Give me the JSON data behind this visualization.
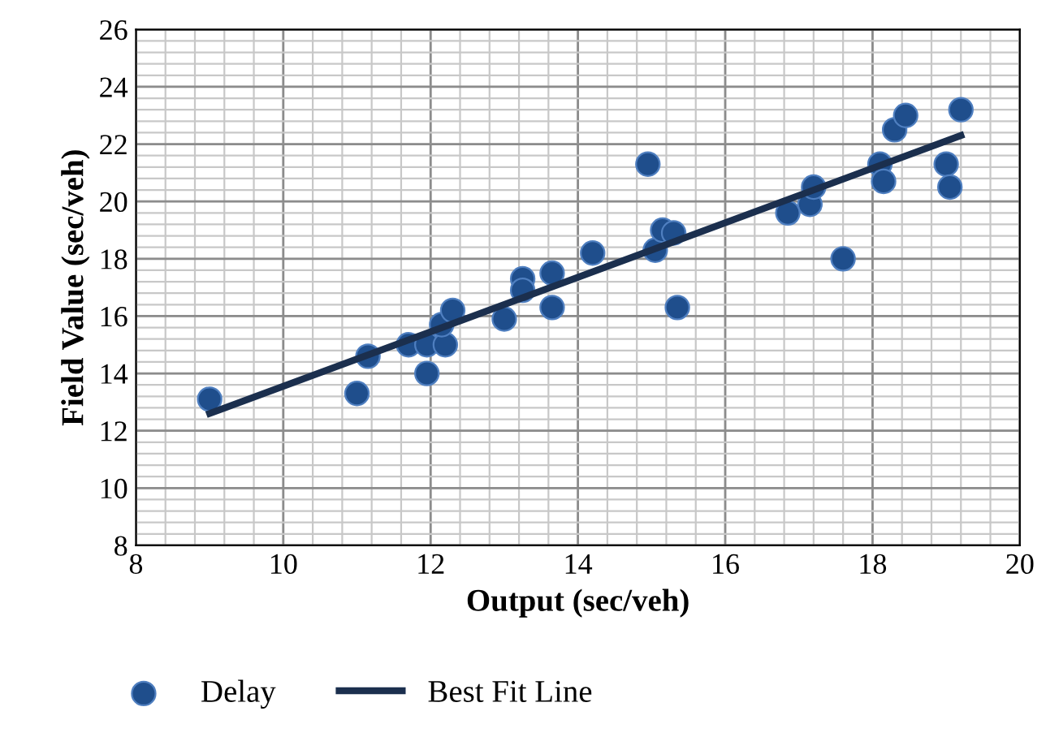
{
  "chart_data": {
    "type": "scatter",
    "xlabel": "Output (sec/veh)",
    "ylabel": "Field Value (sec/veh)",
    "series": [
      {
        "name": "Delay",
        "color": "#1f4e8c",
        "marker": "circle",
        "x": [
          9.0,
          11.0,
          11.15,
          11.7,
          11.95,
          11.95,
          12.2,
          12.15,
          12.3,
          13.0,
          13.25,
          13.25,
          13.65,
          13.65,
          14.2,
          14.95,
          15.05,
          15.15,
          15.3,
          15.35,
          16.85,
          17.15,
          17.2,
          17.6,
          18.1,
          18.15,
          18.3,
          18.45,
          19.0,
          19.05,
          19.2
        ],
        "values": [
          13.1,
          13.3,
          14.6,
          15.0,
          15.0,
          14.0,
          15.0,
          15.7,
          16.2,
          15.9,
          17.3,
          16.9,
          17.5,
          16.3,
          18.2,
          21.3,
          18.3,
          19.0,
          18.9,
          16.3,
          19.6,
          19.9,
          20.5,
          18.0,
          21.3,
          20.7,
          22.5,
          23.0,
          21.3,
          20.5,
          23.2
        ]
      },
      {
        "name": "Best Fit Line",
        "type": "line",
        "color": "#1b2f4e",
        "line_style": "solid",
        "x": [
          9.0,
          19.2
        ],
        "values": [
          12.6,
          22.3
        ]
      }
    ],
    "xlim": [
      8,
      20
    ],
    "xticks": [
      8,
      10,
      12,
      14,
      16,
      18,
      20
    ],
    "ylim": [
      8,
      26
    ],
    "yticks": [
      8,
      10,
      12,
      14,
      16,
      18,
      20,
      22,
      24,
      26
    ],
    "grid": true,
    "legend": "bottom"
  }
}
